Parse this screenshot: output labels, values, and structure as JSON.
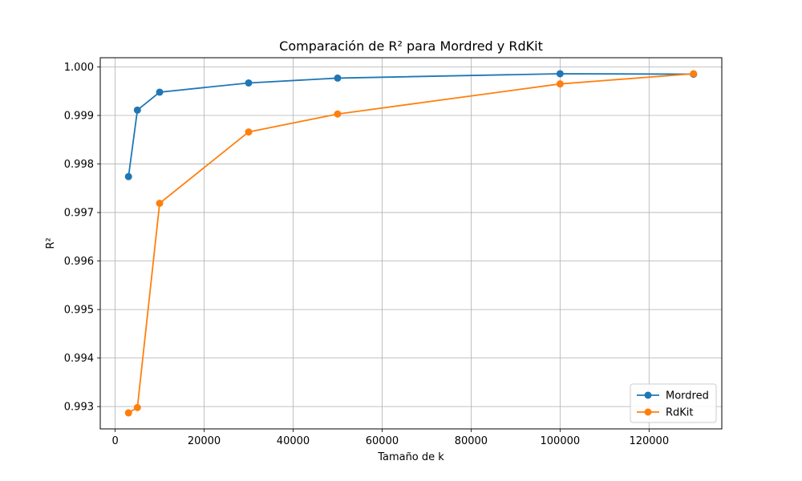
{
  "chart_data": {
    "type": "line",
    "title": "Comparación de R² para Mordred y RdKit",
    "xlabel": "Tamaño de k",
    "ylabel": "R²",
    "x": [
      3000,
      5000,
      10000,
      30000,
      50000,
      100000,
      130000
    ],
    "series": [
      {
        "name": "Mordred",
        "color": "#1f77b4",
        "marker": "circle",
        "values": [
          0.99774,
          0.99911,
          0.99948,
          0.99967,
          0.99977,
          0.99986,
          0.99985
        ]
      },
      {
        "name": "RdKit",
        "color": "#ff7f0e",
        "marker": "circle",
        "values": [
          0.99287,
          0.99298,
          0.99719,
          0.99866,
          0.99903,
          0.99965,
          0.99986
        ]
      }
    ],
    "xlim": [
      -3350,
      136350
    ],
    "ylim": [
      0.99254,
      1.00019
    ],
    "xticks": [
      0,
      20000,
      40000,
      60000,
      80000,
      100000,
      120000
    ],
    "xtick_labels": [
      "0",
      "20000",
      "40000",
      "60000",
      "80000",
      "100000",
      "120000"
    ],
    "yticks": [
      0.993,
      0.994,
      0.995,
      0.996,
      0.997,
      0.998,
      0.999,
      1.0
    ],
    "ytick_labels": [
      "0.993",
      "0.994",
      "0.995",
      "0.996",
      "0.997",
      "0.998",
      "0.999",
      "1.000"
    ],
    "grid": true,
    "legend_position": "lower-right"
  }
}
